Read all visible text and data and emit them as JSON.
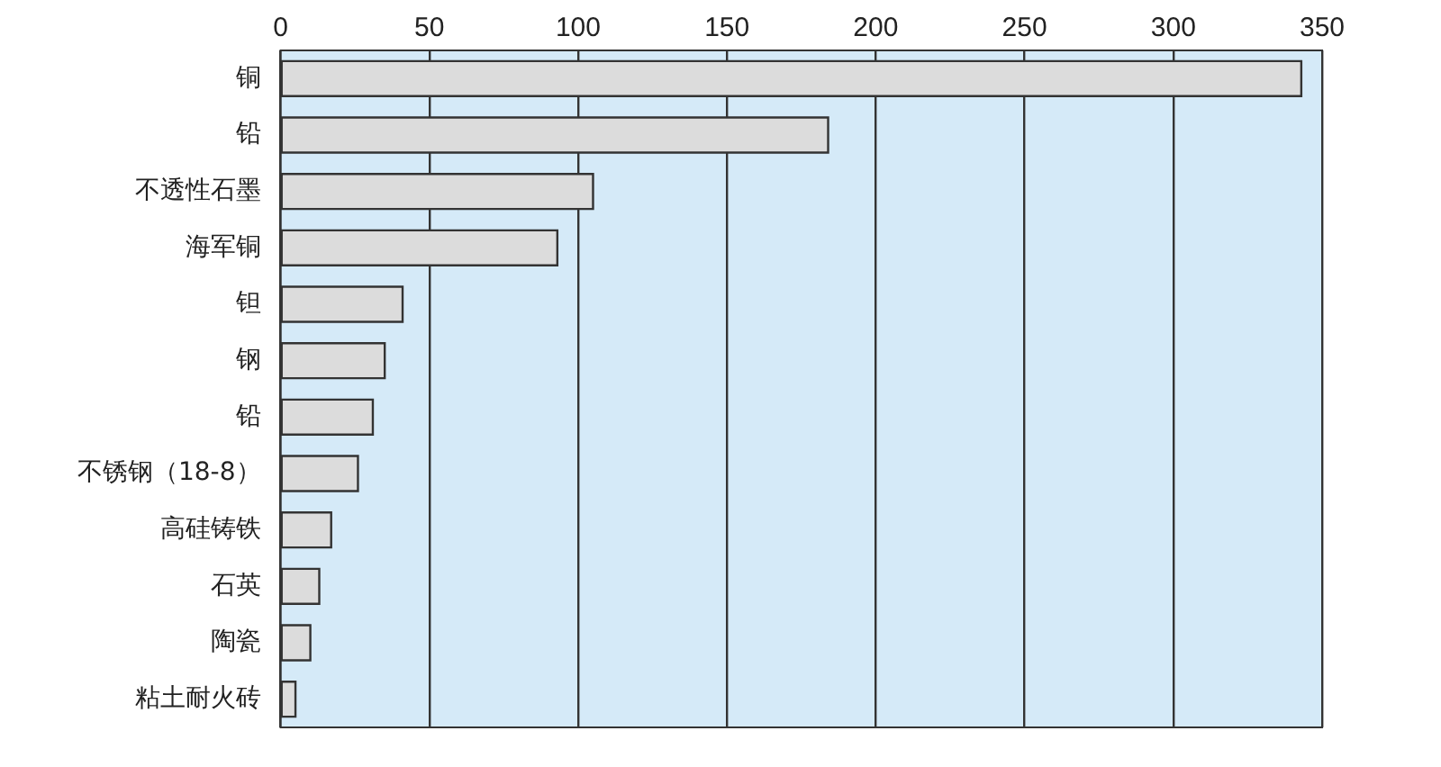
{
  "chart_data": {
    "type": "bar",
    "orientation": "horizontal",
    "categories": [
      "铜",
      "铅",
      "不透性石墨",
      "海军铜",
      "钽",
      "钢",
      "铅",
      "不锈钢（18-8）",
      "高硅铸铁",
      "石英",
      "陶瓷",
      "粘土耐火砖"
    ],
    "values": [
      343,
      184,
      105,
      93,
      41,
      35,
      31,
      26,
      17,
      13,
      10,
      5
    ],
    "color": "#dcdcdc",
    "xlim": [
      0,
      350
    ],
    "xticks": [
      0,
      50,
      100,
      150,
      200,
      250,
      300,
      350
    ],
    "grid": "x"
  }
}
